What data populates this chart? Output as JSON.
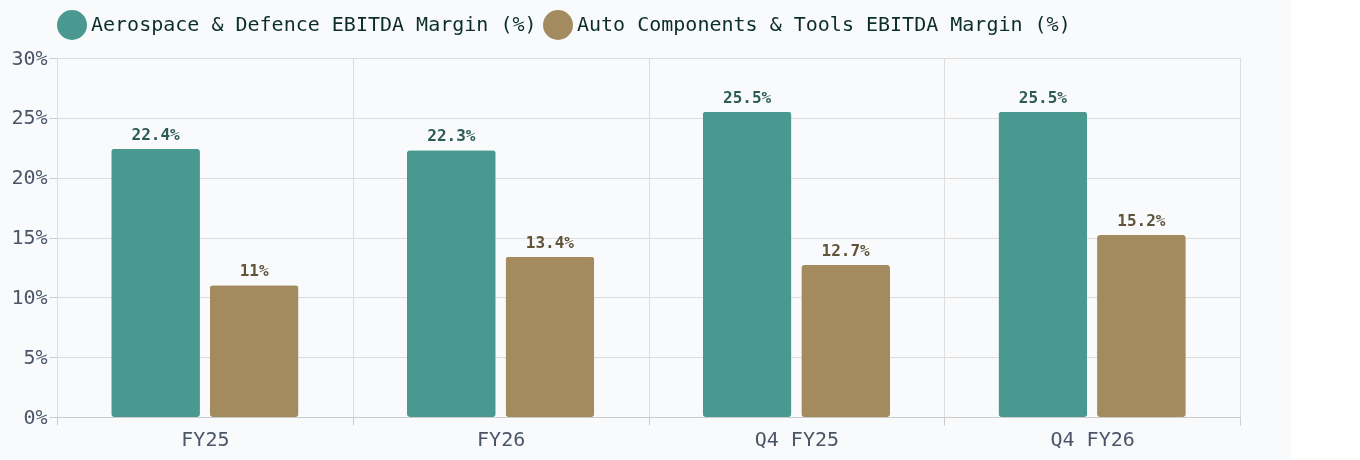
{
  "chart_data": {
    "type": "bar",
    "categories": [
      "FY25",
      "FY26",
      "Q4 FY25",
      "Q4 FY26"
    ],
    "series": [
      {
        "name": "Aerospace & Defence EBITDA Margin (%)",
        "color": "#4a9990",
        "values": [
          22.4,
          22.3,
          25.5,
          25.5
        ],
        "value_labels": [
          "22.4%",
          "22.3%",
          "25.5%",
          "25.5%"
        ]
      },
      {
        "name": "Auto Components & Tools EBITDA Margin (%)",
        "color": "#a38b5f",
        "values": [
          11,
          13.4,
          12.7,
          15.2
        ],
        "value_labels": [
          "11%",
          "13.4%",
          "12.7%",
          "15.2%"
        ]
      }
    ],
    "ylim": [
      0,
      30
    ],
    "yticks": [
      {
        "value": 0,
        "label": "0%"
      },
      {
        "value": 5,
        "label": "5%"
      },
      {
        "value": 10,
        "label": "10%"
      },
      {
        "value": 15,
        "label": "15%"
      },
      {
        "value": 20,
        "label": "20%"
      },
      {
        "value": 25,
        "label": "25%"
      },
      {
        "value": 30,
        "label": "30%"
      }
    ],
    "grid": true,
    "legend": "top left"
  }
}
